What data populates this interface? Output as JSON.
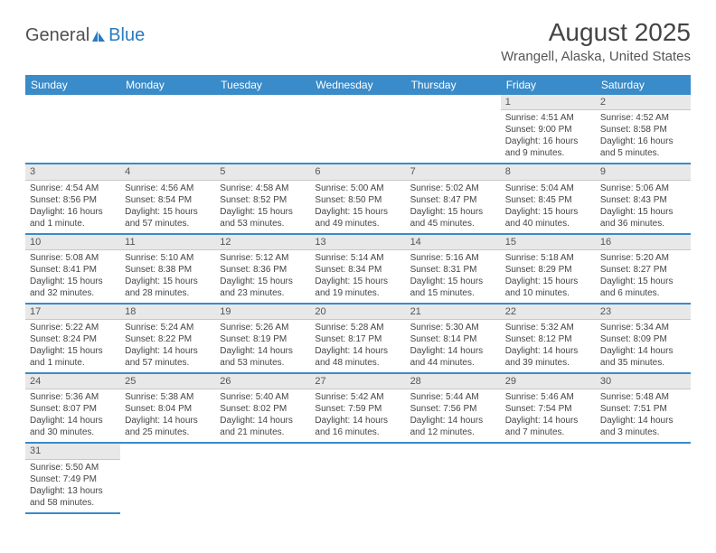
{
  "logo": {
    "text1": "General",
    "text2": "Blue",
    "icon_color": "#2a7bbf"
  },
  "title": "August 2025",
  "subtitle": "Wrangell, Alaska, United States",
  "colors": {
    "header_bg": "#3a8bc9",
    "header_text": "#ffffff",
    "daynum_bg": "#e8e8e8",
    "divider": "#3a8bc9",
    "text": "#444444"
  },
  "day_headers": [
    "Sunday",
    "Monday",
    "Tuesday",
    "Wednesday",
    "Thursday",
    "Friday",
    "Saturday"
  ],
  "weeks": [
    [
      null,
      null,
      null,
      null,
      null,
      {
        "n": "1",
        "sunrise": "Sunrise: 4:51 AM",
        "sunset": "Sunset: 9:00 PM",
        "daylight": "Daylight: 16 hours and 9 minutes."
      },
      {
        "n": "2",
        "sunrise": "Sunrise: 4:52 AM",
        "sunset": "Sunset: 8:58 PM",
        "daylight": "Daylight: 16 hours and 5 minutes."
      }
    ],
    [
      {
        "n": "3",
        "sunrise": "Sunrise: 4:54 AM",
        "sunset": "Sunset: 8:56 PM",
        "daylight": "Daylight: 16 hours and 1 minute."
      },
      {
        "n": "4",
        "sunrise": "Sunrise: 4:56 AM",
        "sunset": "Sunset: 8:54 PM",
        "daylight": "Daylight: 15 hours and 57 minutes."
      },
      {
        "n": "5",
        "sunrise": "Sunrise: 4:58 AM",
        "sunset": "Sunset: 8:52 PM",
        "daylight": "Daylight: 15 hours and 53 minutes."
      },
      {
        "n": "6",
        "sunrise": "Sunrise: 5:00 AM",
        "sunset": "Sunset: 8:50 PM",
        "daylight": "Daylight: 15 hours and 49 minutes."
      },
      {
        "n": "7",
        "sunrise": "Sunrise: 5:02 AM",
        "sunset": "Sunset: 8:47 PM",
        "daylight": "Daylight: 15 hours and 45 minutes."
      },
      {
        "n": "8",
        "sunrise": "Sunrise: 5:04 AM",
        "sunset": "Sunset: 8:45 PM",
        "daylight": "Daylight: 15 hours and 40 minutes."
      },
      {
        "n": "9",
        "sunrise": "Sunrise: 5:06 AM",
        "sunset": "Sunset: 8:43 PM",
        "daylight": "Daylight: 15 hours and 36 minutes."
      }
    ],
    [
      {
        "n": "10",
        "sunrise": "Sunrise: 5:08 AM",
        "sunset": "Sunset: 8:41 PM",
        "daylight": "Daylight: 15 hours and 32 minutes."
      },
      {
        "n": "11",
        "sunrise": "Sunrise: 5:10 AM",
        "sunset": "Sunset: 8:38 PM",
        "daylight": "Daylight: 15 hours and 28 minutes."
      },
      {
        "n": "12",
        "sunrise": "Sunrise: 5:12 AM",
        "sunset": "Sunset: 8:36 PM",
        "daylight": "Daylight: 15 hours and 23 minutes."
      },
      {
        "n": "13",
        "sunrise": "Sunrise: 5:14 AM",
        "sunset": "Sunset: 8:34 PM",
        "daylight": "Daylight: 15 hours and 19 minutes."
      },
      {
        "n": "14",
        "sunrise": "Sunrise: 5:16 AM",
        "sunset": "Sunset: 8:31 PM",
        "daylight": "Daylight: 15 hours and 15 minutes."
      },
      {
        "n": "15",
        "sunrise": "Sunrise: 5:18 AM",
        "sunset": "Sunset: 8:29 PM",
        "daylight": "Daylight: 15 hours and 10 minutes."
      },
      {
        "n": "16",
        "sunrise": "Sunrise: 5:20 AM",
        "sunset": "Sunset: 8:27 PM",
        "daylight": "Daylight: 15 hours and 6 minutes."
      }
    ],
    [
      {
        "n": "17",
        "sunrise": "Sunrise: 5:22 AM",
        "sunset": "Sunset: 8:24 PM",
        "daylight": "Daylight: 15 hours and 1 minute."
      },
      {
        "n": "18",
        "sunrise": "Sunrise: 5:24 AM",
        "sunset": "Sunset: 8:22 PM",
        "daylight": "Daylight: 14 hours and 57 minutes."
      },
      {
        "n": "19",
        "sunrise": "Sunrise: 5:26 AM",
        "sunset": "Sunset: 8:19 PM",
        "daylight": "Daylight: 14 hours and 53 minutes."
      },
      {
        "n": "20",
        "sunrise": "Sunrise: 5:28 AM",
        "sunset": "Sunset: 8:17 PM",
        "daylight": "Daylight: 14 hours and 48 minutes."
      },
      {
        "n": "21",
        "sunrise": "Sunrise: 5:30 AM",
        "sunset": "Sunset: 8:14 PM",
        "daylight": "Daylight: 14 hours and 44 minutes."
      },
      {
        "n": "22",
        "sunrise": "Sunrise: 5:32 AM",
        "sunset": "Sunset: 8:12 PM",
        "daylight": "Daylight: 14 hours and 39 minutes."
      },
      {
        "n": "23",
        "sunrise": "Sunrise: 5:34 AM",
        "sunset": "Sunset: 8:09 PM",
        "daylight": "Daylight: 14 hours and 35 minutes."
      }
    ],
    [
      {
        "n": "24",
        "sunrise": "Sunrise: 5:36 AM",
        "sunset": "Sunset: 8:07 PM",
        "daylight": "Daylight: 14 hours and 30 minutes."
      },
      {
        "n": "25",
        "sunrise": "Sunrise: 5:38 AM",
        "sunset": "Sunset: 8:04 PM",
        "daylight": "Daylight: 14 hours and 25 minutes."
      },
      {
        "n": "26",
        "sunrise": "Sunrise: 5:40 AM",
        "sunset": "Sunset: 8:02 PM",
        "daylight": "Daylight: 14 hours and 21 minutes."
      },
      {
        "n": "27",
        "sunrise": "Sunrise: 5:42 AM",
        "sunset": "Sunset: 7:59 PM",
        "daylight": "Daylight: 14 hours and 16 minutes."
      },
      {
        "n": "28",
        "sunrise": "Sunrise: 5:44 AM",
        "sunset": "Sunset: 7:56 PM",
        "daylight": "Daylight: 14 hours and 12 minutes."
      },
      {
        "n": "29",
        "sunrise": "Sunrise: 5:46 AM",
        "sunset": "Sunset: 7:54 PM",
        "daylight": "Daylight: 14 hours and 7 minutes."
      },
      {
        "n": "30",
        "sunrise": "Sunrise: 5:48 AM",
        "sunset": "Sunset: 7:51 PM",
        "daylight": "Daylight: 14 hours and 3 minutes."
      }
    ],
    [
      {
        "n": "31",
        "sunrise": "Sunrise: 5:50 AM",
        "sunset": "Sunset: 7:49 PM",
        "daylight": "Daylight: 13 hours and 58 minutes."
      },
      null,
      null,
      null,
      null,
      null,
      null
    ]
  ]
}
